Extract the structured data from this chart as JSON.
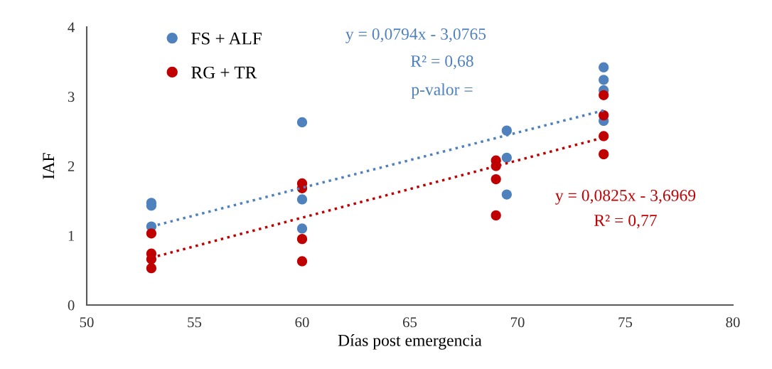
{
  "chart_data": {
    "type": "scatter",
    "xlabel": "Días post emergencia",
    "ylabel": "IAF",
    "xlim": [
      50,
      80
    ],
    "xticks": [
      50,
      55,
      60,
      65,
      70,
      75,
      80
    ],
    "ylim": [
      0,
      4
    ],
    "yticks": [
      0,
      1,
      2,
      3,
      4
    ],
    "grid": false,
    "legend": "top left",
    "marker": "circle",
    "series": [
      {
        "name": "FS + ALF",
        "color": "#4f81bd",
        "x": [
          53,
          53,
          53,
          60,
          60,
          60,
          69.5,
          69.5,
          69.5,
          74,
          74,
          74,
          74
        ],
        "values": [
          1.47,
          1.43,
          1.13,
          2.63,
          1.52,
          1.1,
          2.51,
          2.12,
          1.59,
          3.42,
          3.24,
          3.09,
          2.65
        ]
      },
      {
        "name": "RG + TR",
        "color": "#c00000",
        "x": [
          53,
          53,
          53,
          53,
          60,
          60,
          60,
          60,
          69,
          69,
          69,
          69,
          74,
          74,
          74,
          74
        ],
        "values": [
          1.03,
          0.74,
          0.66,
          0.53,
          1.75,
          1.68,
          0.95,
          0.63,
          2.08,
          2.0,
          1.81,
          1.29,
          3.02,
          2.73,
          2.43,
          2.17
        ]
      },
      {
        "type": "line",
        "color": "#4f81bd",
        "line_style": "dotted",
        "marker": "none",
        "x": [
          53,
          74
        ],
        "values": [
          1.13,
          2.8
        ]
      },
      {
        "type": "line",
        "color": "#c00000",
        "line_style": "dotted",
        "marker": "none",
        "x": [
          53,
          74
        ],
        "values": [
          0.68,
          2.41
        ]
      }
    ],
    "annotations": [
      "y = 0,0794x - 3,0765",
      "R² = 0,68",
      "p-valor =",
      "y = 0,0825x - 3,6969",
      "R² = 0,77"
    ]
  }
}
